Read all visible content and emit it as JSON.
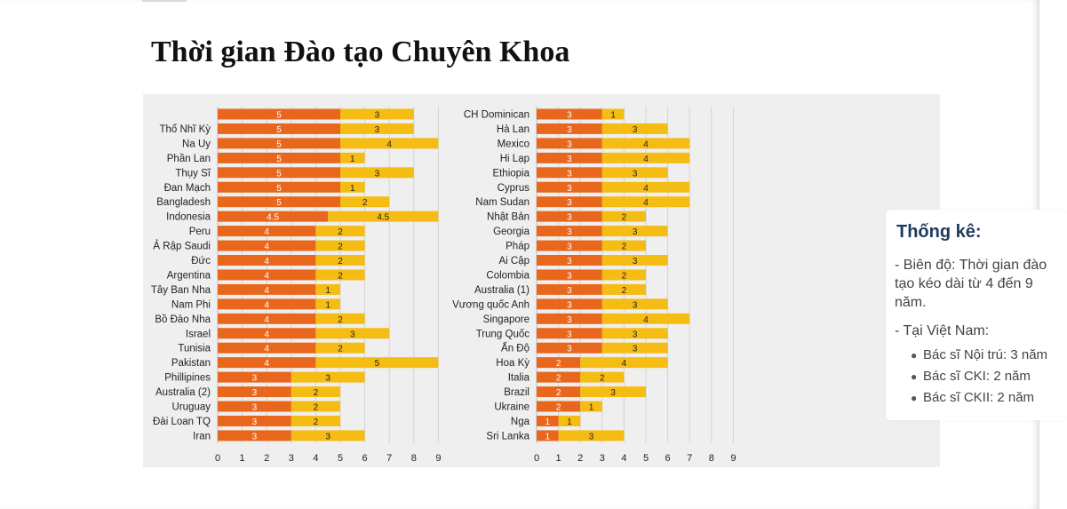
{
  "page": {
    "title": "Thời gian Đào tạo Chuyên Khoa"
  },
  "stats": {
    "title": "Thống kê:",
    "range_text": "- Biên độ: Thời gian đào tạo kéo dài từ 4 đến 9 năm.",
    "vietnam_heading": "- Tại Việt Nam:",
    "items": [
      "Bác sĩ Nội trú: 3 năm",
      "Bác sĩ CKI: 2 năm",
      "Bác sĩ CKII: 2 năm"
    ]
  },
  "chart_data": [
    {
      "type": "bar",
      "orientation": "horizontal",
      "stacked": true,
      "x_ticks": [
        0,
        1,
        2,
        3,
        4,
        5,
        6,
        7,
        8,
        9
      ],
      "xlim": [
        0,
        9
      ],
      "colors": {
        "segment_1": "#e8671d",
        "segment_2": "#f5bc14"
      },
      "categories": [
        "Thổ Nhĩ Kỳ",
        "Na Uy",
        "Phần Lan",
        "Thụy Sĩ",
        "Đan Mạch",
        "Bangladesh",
        "Indonesia",
        "Peru",
        "Ả Rập Saudi",
        "Đức",
        "Argentina",
        "Tây Ban Nha",
        "Nam Phi",
        "Bồ Đào Nha",
        "Israel",
        "Tunisia",
        "Pakistan",
        "Phillipines",
        "Australia (2)",
        "Uruguay",
        "Đài Loan TQ",
        "Iran"
      ],
      "series": [
        {
          "values": [
            5,
            5,
            5,
            5,
            5,
            5,
            4.5,
            4,
            4,
            4,
            4,
            4,
            4,
            4,
            4,
            4,
            4,
            3,
            3,
            3,
            3,
            3
          ]
        },
        {
          "values": [
            3,
            4,
            1,
            3,
            1,
            2,
            4.5,
            2,
            2,
            2,
            2,
            1,
            1,
            2,
            3,
            2,
            5,
            3,
            2,
            2,
            2,
            3
          ]
        }
      ],
      "top_extra_bar": [
        5,
        3
      ]
    },
    {
      "type": "bar",
      "orientation": "horizontal",
      "stacked": true,
      "x_ticks": [
        0,
        1,
        2,
        3,
        4,
        5,
        6,
        7,
        8,
        9
      ],
      "xlim": [
        0,
        9
      ],
      "colors": {
        "segment_1": "#e8671d",
        "segment_2": "#f5bc14"
      },
      "categories": [
        "CH Dominican",
        "Hà Lan",
        "Mexico",
        "Hi Lạp",
        "Ethiopia",
        "Cyprus",
        "Nam Sudan",
        "Nhật Bản",
        "Georgia",
        "Pháp",
        "Ai Cập",
        "Colombia",
        "Australia (1)",
        "Vương quốc Anh",
        "Singapore",
        "Trung Quốc",
        "Ấn Độ",
        "Hoa Kỳ",
        "Italia",
        "Brazil",
        "Ukraine",
        "Nga",
        "Sri Lanka"
      ],
      "series": [
        {
          "values": [
            3,
            3,
            3,
            3,
            3,
            3,
            3,
            3,
            3,
            3,
            3,
            3,
            3,
            3,
            3,
            3,
            3,
            2,
            2,
            2,
            2,
            1,
            1
          ]
        },
        {
          "values": [
            1,
            3,
            4,
            4,
            3,
            4,
            4,
            2,
            3,
            2,
            3,
            2,
            2,
            3,
            4,
            3,
            3,
            4,
            2,
            3,
            1,
            1,
            3
          ]
        }
      ]
    }
  ]
}
